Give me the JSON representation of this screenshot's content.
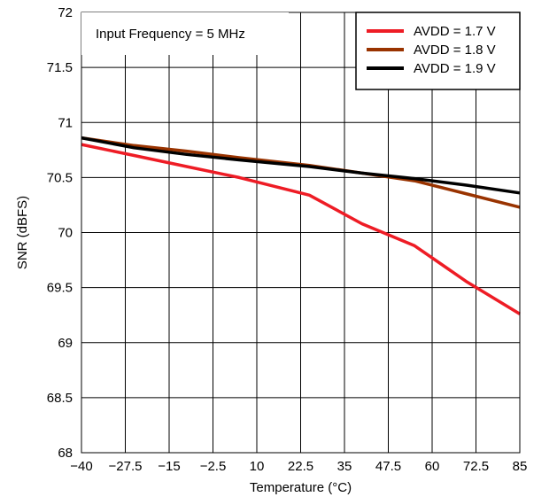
{
  "colors": {
    "background": "#ffffff",
    "axis": "#000000",
    "grid": "#000000",
    "text": "#000000"
  },
  "chart_data": {
    "type": "line",
    "title": "",
    "xlabel": "Temperature (°C)",
    "ylabel": "SNR (dBFS)",
    "xlim": [
      -40,
      85
    ],
    "ylim": [
      68,
      72
    ],
    "x_ticks": [
      -40,
      -27.5,
      -15,
      -2.5,
      10,
      22.5,
      35,
      47.5,
      60,
      72.5,
      85
    ],
    "x_tick_labels": [
      "−40",
      "−27.5",
      "−15",
      "−2.5",
      "10",
      "22.5",
      "35",
      "47.5",
      "60",
      "72.5",
      "85"
    ],
    "y_ticks": [
      68,
      68.5,
      69,
      69.5,
      70,
      70.5,
      71,
      71.5,
      72
    ],
    "y_tick_labels": [
      "68",
      "68.5",
      "69",
      "69.5",
      "70",
      "70.5",
      "71",
      "71.5",
      "72"
    ],
    "grid": true,
    "annotation": "Input Frequency = 5 MHz",
    "legend_position": "top-right",
    "series": [
      {
        "name": "AVDD = 1.7 V",
        "color": "#ee1c25",
        "x": [
          -40,
          -25,
          -10,
          5,
          20,
          25,
          40,
          55,
          70,
          85
        ],
        "y": [
          70.8,
          70.7,
          70.6,
          70.5,
          70.38,
          70.34,
          70.08,
          69.88,
          69.55,
          69.26
        ]
      },
      {
        "name": "AVDD = 1.8 V",
        "color": "#993300",
        "x": [
          -40,
          -25,
          -10,
          5,
          25,
          40,
          55,
          70,
          85
        ],
        "y": [
          70.86,
          70.79,
          70.74,
          70.68,
          70.61,
          70.54,
          70.47,
          70.35,
          70.23
        ]
      },
      {
        "name": "AVDD = 1.9 V",
        "color": "#000000",
        "x": [
          -40,
          -25,
          -10,
          5,
          25,
          40,
          55,
          70,
          85
        ],
        "y": [
          70.86,
          70.77,
          70.71,
          70.66,
          70.6,
          70.54,
          70.49,
          70.43,
          70.36
        ]
      }
    ]
  }
}
